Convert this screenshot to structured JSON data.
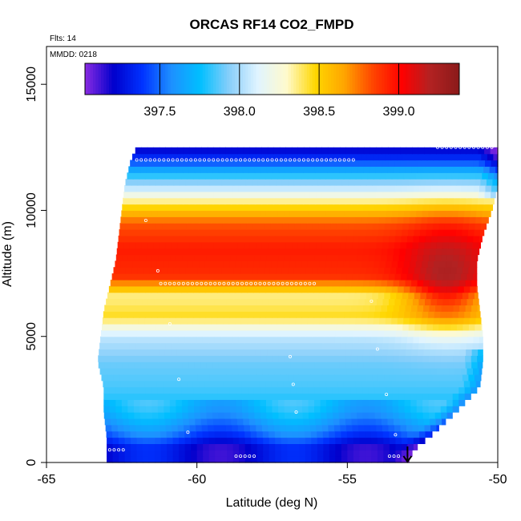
{
  "chart_data": {
    "type": "heatmap",
    "title": "ORCAS RF14 CO2_FMPD",
    "xlabel": "Latitude (deg N)",
    "ylabel": "Altitude (m)",
    "xlim": [
      -65,
      -50
    ],
    "ylim": [
      0,
      16500
    ],
    "x_ticks": [
      -65,
      -60,
      -55,
      -50
    ],
    "x_tick_labels": [
      "-65",
      "-60",
      "-55",
      "-50"
    ],
    "y_ticks": [
      0,
      5000,
      10000,
      15000
    ],
    "y_tick_labels": [
      "0",
      "5000",
      "10000",
      "15000"
    ],
    "flights_note": "Flts: 14",
    "date_note": "MMDD: 0218",
    "colorbar": {
      "range": [
        397.03,
        399.38
      ],
      "ticks": [
        397.5,
        398.0,
        398.5,
        399.0
      ],
      "tick_labels": [
        "397.5",
        "398.0",
        "398.5",
        "399.0"
      ],
      "colors": [
        "#8a2be2",
        "#0000cd",
        "#0033ff",
        "#1e90ff",
        "#00bfff",
        "#87cefa",
        "#e0f4ff",
        "#fffacd",
        "#ffd700",
        "#ffa500",
        "#ff4500",
        "#ff0000",
        "#b22222",
        "#8b1a1a"
      ]
    },
    "grid": false,
    "domain_edges": [
      {
        "alt": 0,
        "lat_min": -63.0,
        "lat_max": -53.0
      },
      {
        "alt": 500,
        "lat_min": -63.0,
        "lat_max": -52.8
      },
      {
        "alt": 1000,
        "lat_min": -63.0,
        "lat_max": -52.3
      },
      {
        "alt": 2000,
        "lat_min": -63.1,
        "lat_max": -51.4
      },
      {
        "alt": 3000,
        "lat_min": -63.1,
        "lat_max": -50.6
      },
      {
        "alt": 4000,
        "lat_min": -63.3,
        "lat_max": -50.5
      },
      {
        "alt": 5000,
        "lat_min": -63.2,
        "lat_max": -50.5
      },
      {
        "alt": 6000,
        "lat_min": -63.1,
        "lat_max": -50.6
      },
      {
        "alt": 7000,
        "lat_min": -62.9,
        "lat_max": -50.7
      },
      {
        "alt": 8000,
        "lat_min": -62.7,
        "lat_max": -50.7
      },
      {
        "alt": 9000,
        "lat_min": -62.6,
        "lat_max": -50.5
      },
      {
        "alt": 10000,
        "lat_min": -62.5,
        "lat_max": -50.2
      },
      {
        "alt": 11000,
        "lat_min": -62.4,
        "lat_max": -50.0
      },
      {
        "alt": 12000,
        "lat_min": -62.2,
        "lat_max": -50.0
      },
      {
        "alt": 12500,
        "lat_min": -62.0,
        "lat_max": -50.0
      }
    ],
    "field_profile": [
      {
        "alt": 0,
        "value": 397.3
      },
      {
        "alt": 600,
        "value": 397.3
      },
      {
        "alt": 1200,
        "value": 397.55
      },
      {
        "alt": 2000,
        "value": 397.75
      },
      {
        "alt": 3000,
        "value": 397.85
      },
      {
        "alt": 4000,
        "value": 397.9
      },
      {
        "alt": 5000,
        "value": 398.05
      },
      {
        "alt": 5800,
        "value": 398.45
      },
      {
        "alt": 6600,
        "value": 398.35
      },
      {
        "alt": 7400,
        "value": 398.9
      },
      {
        "alt": 8500,
        "value": 398.95
      },
      {
        "alt": 9500,
        "value": 398.8
      },
      {
        "alt": 10200,
        "value": 398.45
      },
      {
        "alt": 10800,
        "value": 398.1
      },
      {
        "alt": 11400,
        "value": 397.8
      },
      {
        "alt": 12000,
        "value": 397.4
      },
      {
        "alt": 12500,
        "value": 397.2
      }
    ],
    "hotspot": {
      "lat": -51.7,
      "alt": 7500,
      "value": 399.3
    },
    "flight_track_levels": [
      {
        "alt": 12000,
        "lat_from": -62.0,
        "lat_to": -54.7
      },
      {
        "alt": 7100,
        "lat_from": -61.2,
        "lat_to": -56.0
      },
      {
        "alt": 500,
        "lat_from": -62.9,
        "lat_to": -62.4
      },
      {
        "alt": 250,
        "lat_from": -58.7,
        "lat_to": -58.0
      },
      {
        "alt": 250,
        "lat_from": -53.6,
        "lat_to": -53.3
      },
      {
        "alt": 12500,
        "lat_from": -52.0,
        "lat_to": -50.1
      }
    ],
    "track_marker": {
      "lat": -53.0,
      "alt": 0,
      "symbol": "arrow-down"
    }
  }
}
